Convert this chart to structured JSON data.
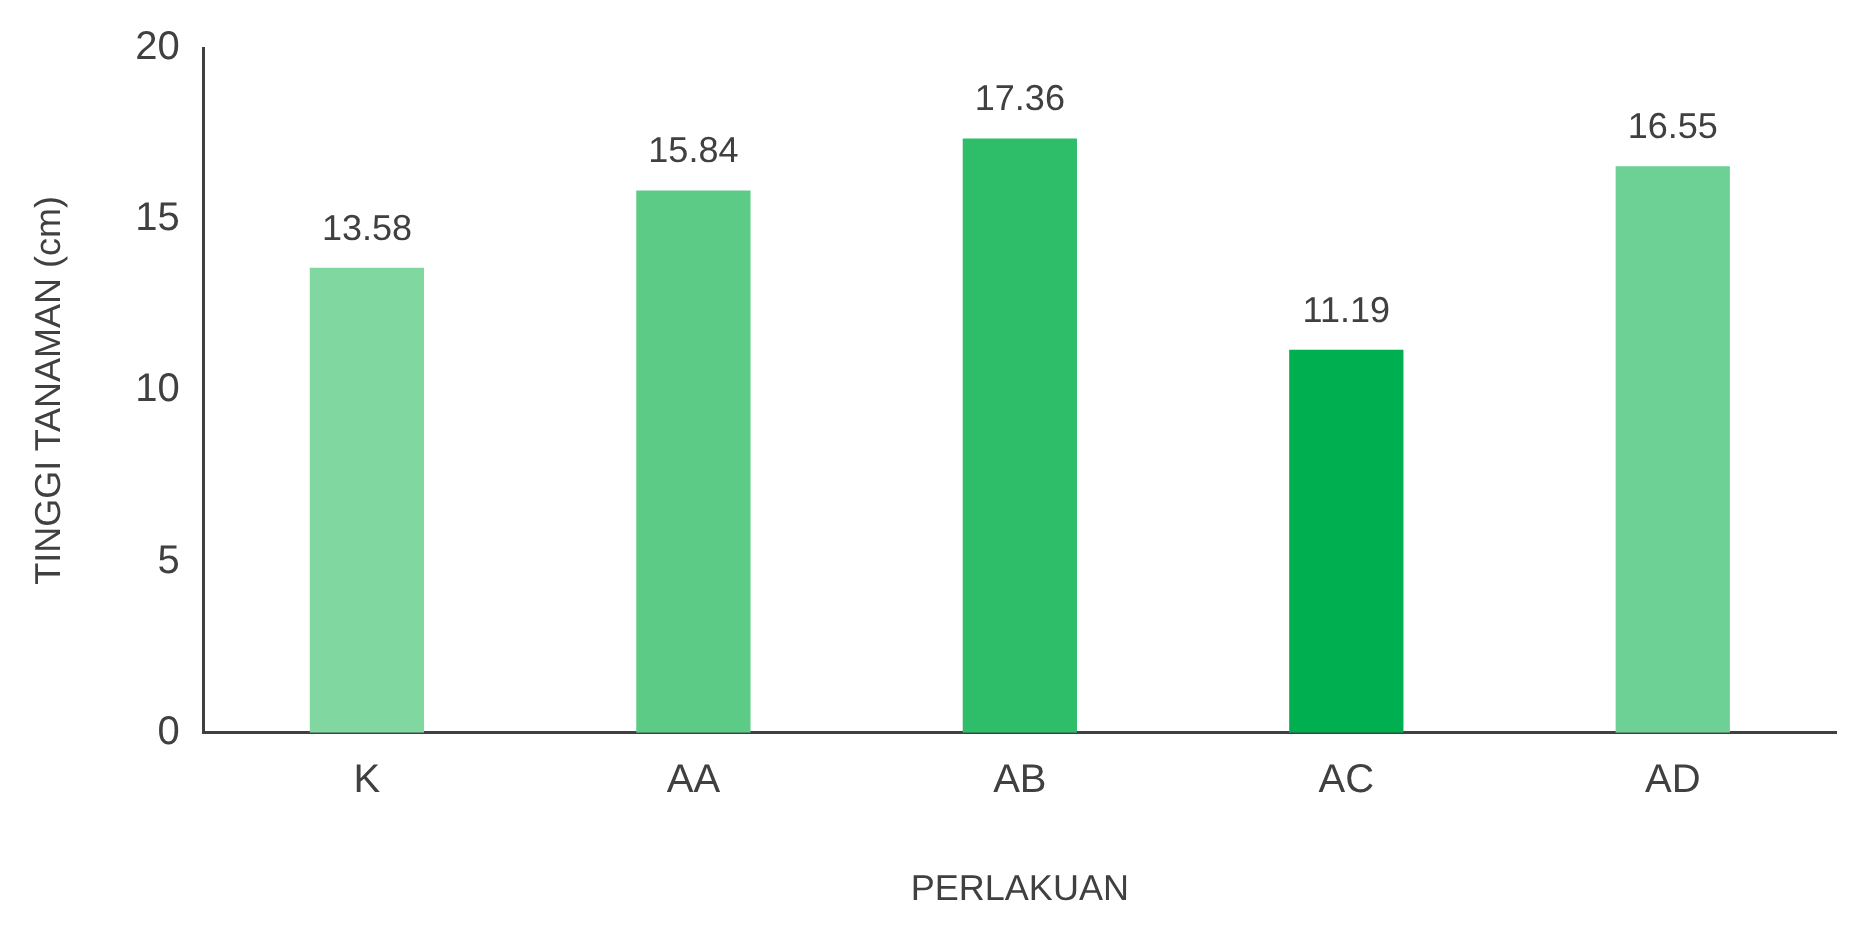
{
  "chart_data": {
    "type": "bar",
    "xlabel": "PERLAKUAN",
    "ylabel": "TINGGI TANAMAN (cm)",
    "categories": [
      "K",
      "AA",
      "AB",
      "AC",
      "AD"
    ],
    "values": [
      13.58,
      15.84,
      17.36,
      11.19,
      16.55
    ],
    "colors": [
      "#80d7a0",
      "#5ccb86",
      "#2ebd69",
      "#00b050",
      "#6dd196"
    ],
    "ylim": [
      0,
      20
    ],
    "yticks": [
      0,
      5,
      10,
      15,
      20
    ],
    "grid": false,
    "data_labels": true
  }
}
